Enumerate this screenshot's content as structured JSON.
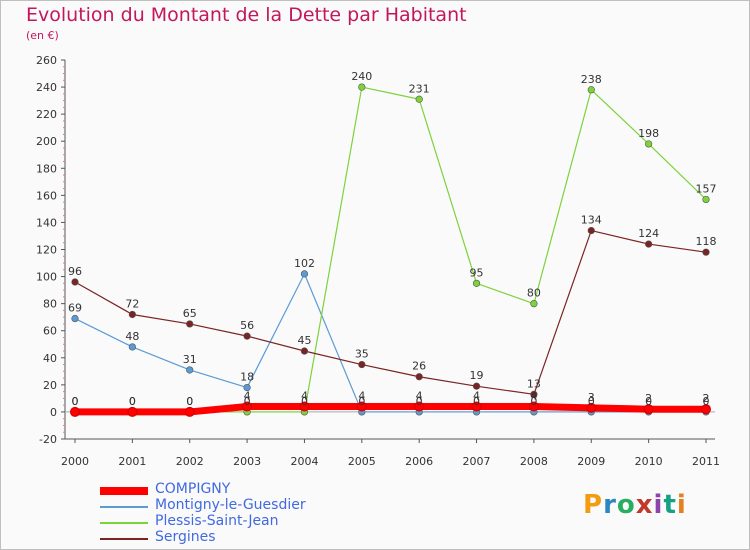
{
  "title": "Evolution du Montant de la Dette par Habitant",
  "subtitle": "(en €)",
  "logo": {
    "text": "Proxiti",
    "letters": [
      "P",
      "r",
      "o",
      "x",
      "i",
      "t",
      "i"
    ],
    "colors": [
      "#f39c12",
      "#2e86c1",
      "#27ae60",
      "#c0392b",
      "#8e44ad",
      "#16a085",
      "#e67e22"
    ]
  },
  "chart_data": {
    "type": "line",
    "title": "Evolution du Montant de la Dette par Habitant",
    "subtitle": "(en €)",
    "x": [
      "2000",
      "2001",
      "2002",
      "2003",
      "2004",
      "2005",
      "2006",
      "2007",
      "2008",
      "2009",
      "2010",
      "2011"
    ],
    "ylim": [
      -20,
      260
    ],
    "yticks": [
      -20,
      0,
      20,
      40,
      60,
      80,
      100,
      120,
      140,
      160,
      180,
      200,
      220,
      240,
      260
    ],
    "grid": false,
    "legend_position": "bottom-left",
    "series": [
      {
        "name": "COMPIGNY",
        "color": "#ff0000",
        "values": [
          0,
          0,
          0,
          4,
          4,
          4,
          4,
          4,
          4,
          3,
          2,
          2
        ],
        "labels": [
          "0",
          "0",
          "0",
          "4",
          "4",
          "4",
          "4",
          "4",
          "4",
          "3",
          "2",
          "2"
        ]
      },
      {
        "name": "Montigny-le-Guesdier",
        "color": "#5b9bd5",
        "values": [
          69,
          48,
          31,
          18,
          102,
          0,
          0,
          0,
          0,
          0,
          0,
          0
        ],
        "labels": [
          "69",
          "48",
          "31",
          "18",
          "102",
          "0",
          "0",
          "0",
          "0",
          "0",
          "0",
          "0"
        ]
      },
      {
        "name": "Plessis-Saint-Jean",
        "color": "#7cd33a",
        "values": [
          0,
          0,
          0,
          0,
          0,
          240,
          231,
          95,
          80,
          238,
          198,
          157
        ],
        "labels": [
          "0",
          "0",
          "0",
          "0",
          "0",
          "240",
          "231",
          "95",
          "80",
          "238",
          "198",
          "157"
        ]
      },
      {
        "name": "Sergines",
        "color": "#7b2424",
        "values": [
          96,
          72,
          65,
          56,
          45,
          35,
          26,
          19,
          13,
          134,
          124,
          118
        ],
        "labels": [
          "96",
          "72",
          "65",
          "56",
          "45",
          "35",
          "26",
          "19",
          "13",
          "134",
          "124",
          "118"
        ]
      }
    ]
  }
}
